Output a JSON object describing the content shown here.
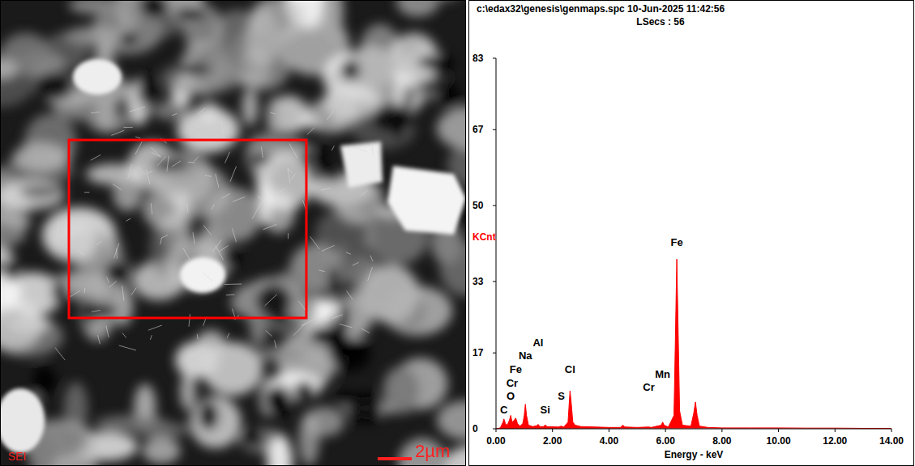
{
  "chart_data": {
    "type": "area",
    "title": "c:\\edax32\\genesis\\genmaps.spc 10-Jun-2025 11:42:56",
    "subtitle": "LSecs : 56",
    "x_label": "Energy - keV",
    "y_label": "KCnt",
    "color": "#ff0000",
    "x": [
      0.0,
      0.15,
      0.25,
      0.28,
      0.33,
      0.4,
      0.48,
      0.52,
      0.57,
      0.63,
      0.7,
      0.76,
      0.85,
      0.95,
      1.0,
      1.04,
      1.08,
      1.15,
      1.3,
      1.45,
      1.49,
      1.55,
      1.7,
      1.74,
      1.8,
      2.2,
      2.31,
      2.4,
      2.55,
      2.6,
      2.62,
      2.66,
      2.72,
      2.8,
      2.95,
      3.0,
      3.5,
      4.0,
      4.4,
      4.5,
      4.56,
      5.0,
      5.41,
      5.5,
      5.85,
      5.9,
      5.95,
      6.1,
      6.3,
      6.35,
      6.4,
      6.45,
      6.5,
      6.6,
      6.9,
      7.0,
      7.06,
      7.12,
      7.2,
      7.5,
      8.0,
      9.0,
      10.0,
      11.0,
      12.0,
      13.0,
      14.0
    ],
    "values": [
      0,
      0.2,
      1.5,
      2.2,
      1.2,
      0.8,
      2.0,
      3.0,
      1.5,
      1.8,
      2.4,
      1.2,
      0.6,
      1.2,
      3.0,
      5.5,
      3.0,
      0.8,
      0.5,
      0.7,
      1.0,
      0.5,
      0.5,
      0.9,
      0.5,
      0.4,
      0.6,
      0.4,
      1.5,
      6.5,
      8.5,
      6.0,
      1.5,
      0.8,
      0.6,
      0.5,
      0.4,
      0.3,
      0.3,
      0.8,
      0.4,
      0.3,
      0.4,
      0.3,
      0.8,
      1.5,
      0.8,
      0.4,
      3.0,
      20,
      38,
      21,
      4,
      0.8,
      0.6,
      3.5,
      6.0,
      3.0,
      0.6,
      0.3,
      0.2,
      0.2,
      0.2,
      0.15,
      0.15,
      0.1,
      0.1
    ],
    "xlim": [
      0,
      14
    ],
    "xticks": [
      {
        "value": 0,
        "label": "0.00"
      },
      {
        "value": 2,
        "label": "2.00"
      },
      {
        "value": 4,
        "label": "4.00"
      },
      {
        "value": 6,
        "label": "6.00"
      },
      {
        "value": 8,
        "label": "8.00"
      },
      {
        "value": 10,
        "label": "10.00"
      },
      {
        "value": 12,
        "label": "12.00"
      },
      {
        "value": 14,
        "label": "14.00"
      }
    ],
    "ylim": [
      0,
      83
    ],
    "yticks": [
      0,
      17,
      33,
      50,
      67,
      83
    ],
    "grid": false,
    "annotations": [
      {
        "text": "C",
        "x": 0.28,
        "y": 3.5
      },
      {
        "text": "O",
        "x": 0.52,
        "y": 6.5
      },
      {
        "text": "Cr",
        "x": 0.57,
        "y": 9.5
      },
      {
        "text": "Fe",
        "x": 0.7,
        "y": 12.5
      },
      {
        "text": "Na",
        "x": 1.04,
        "y": 15.5
      },
      {
        "text": "Al",
        "x": 1.49,
        "y": 18.5
      },
      {
        "text": "Si",
        "x": 1.74,
        "y": 3.5
      },
      {
        "text": "S",
        "x": 2.31,
        "y": 6.5
      },
      {
        "text": "Cl",
        "x": 2.62,
        "y": 12.5
      },
      {
        "text": "Cr",
        "x": 5.41,
        "y": 8.5
      },
      {
        "text": "Mn",
        "x": 5.9,
        "y": 11.5
      },
      {
        "text": "Fe",
        "x": 6.4,
        "y": 41
      }
    ]
  },
  "micrograph": {
    "label": "SEI",
    "scale_bar": "2µm"
  }
}
